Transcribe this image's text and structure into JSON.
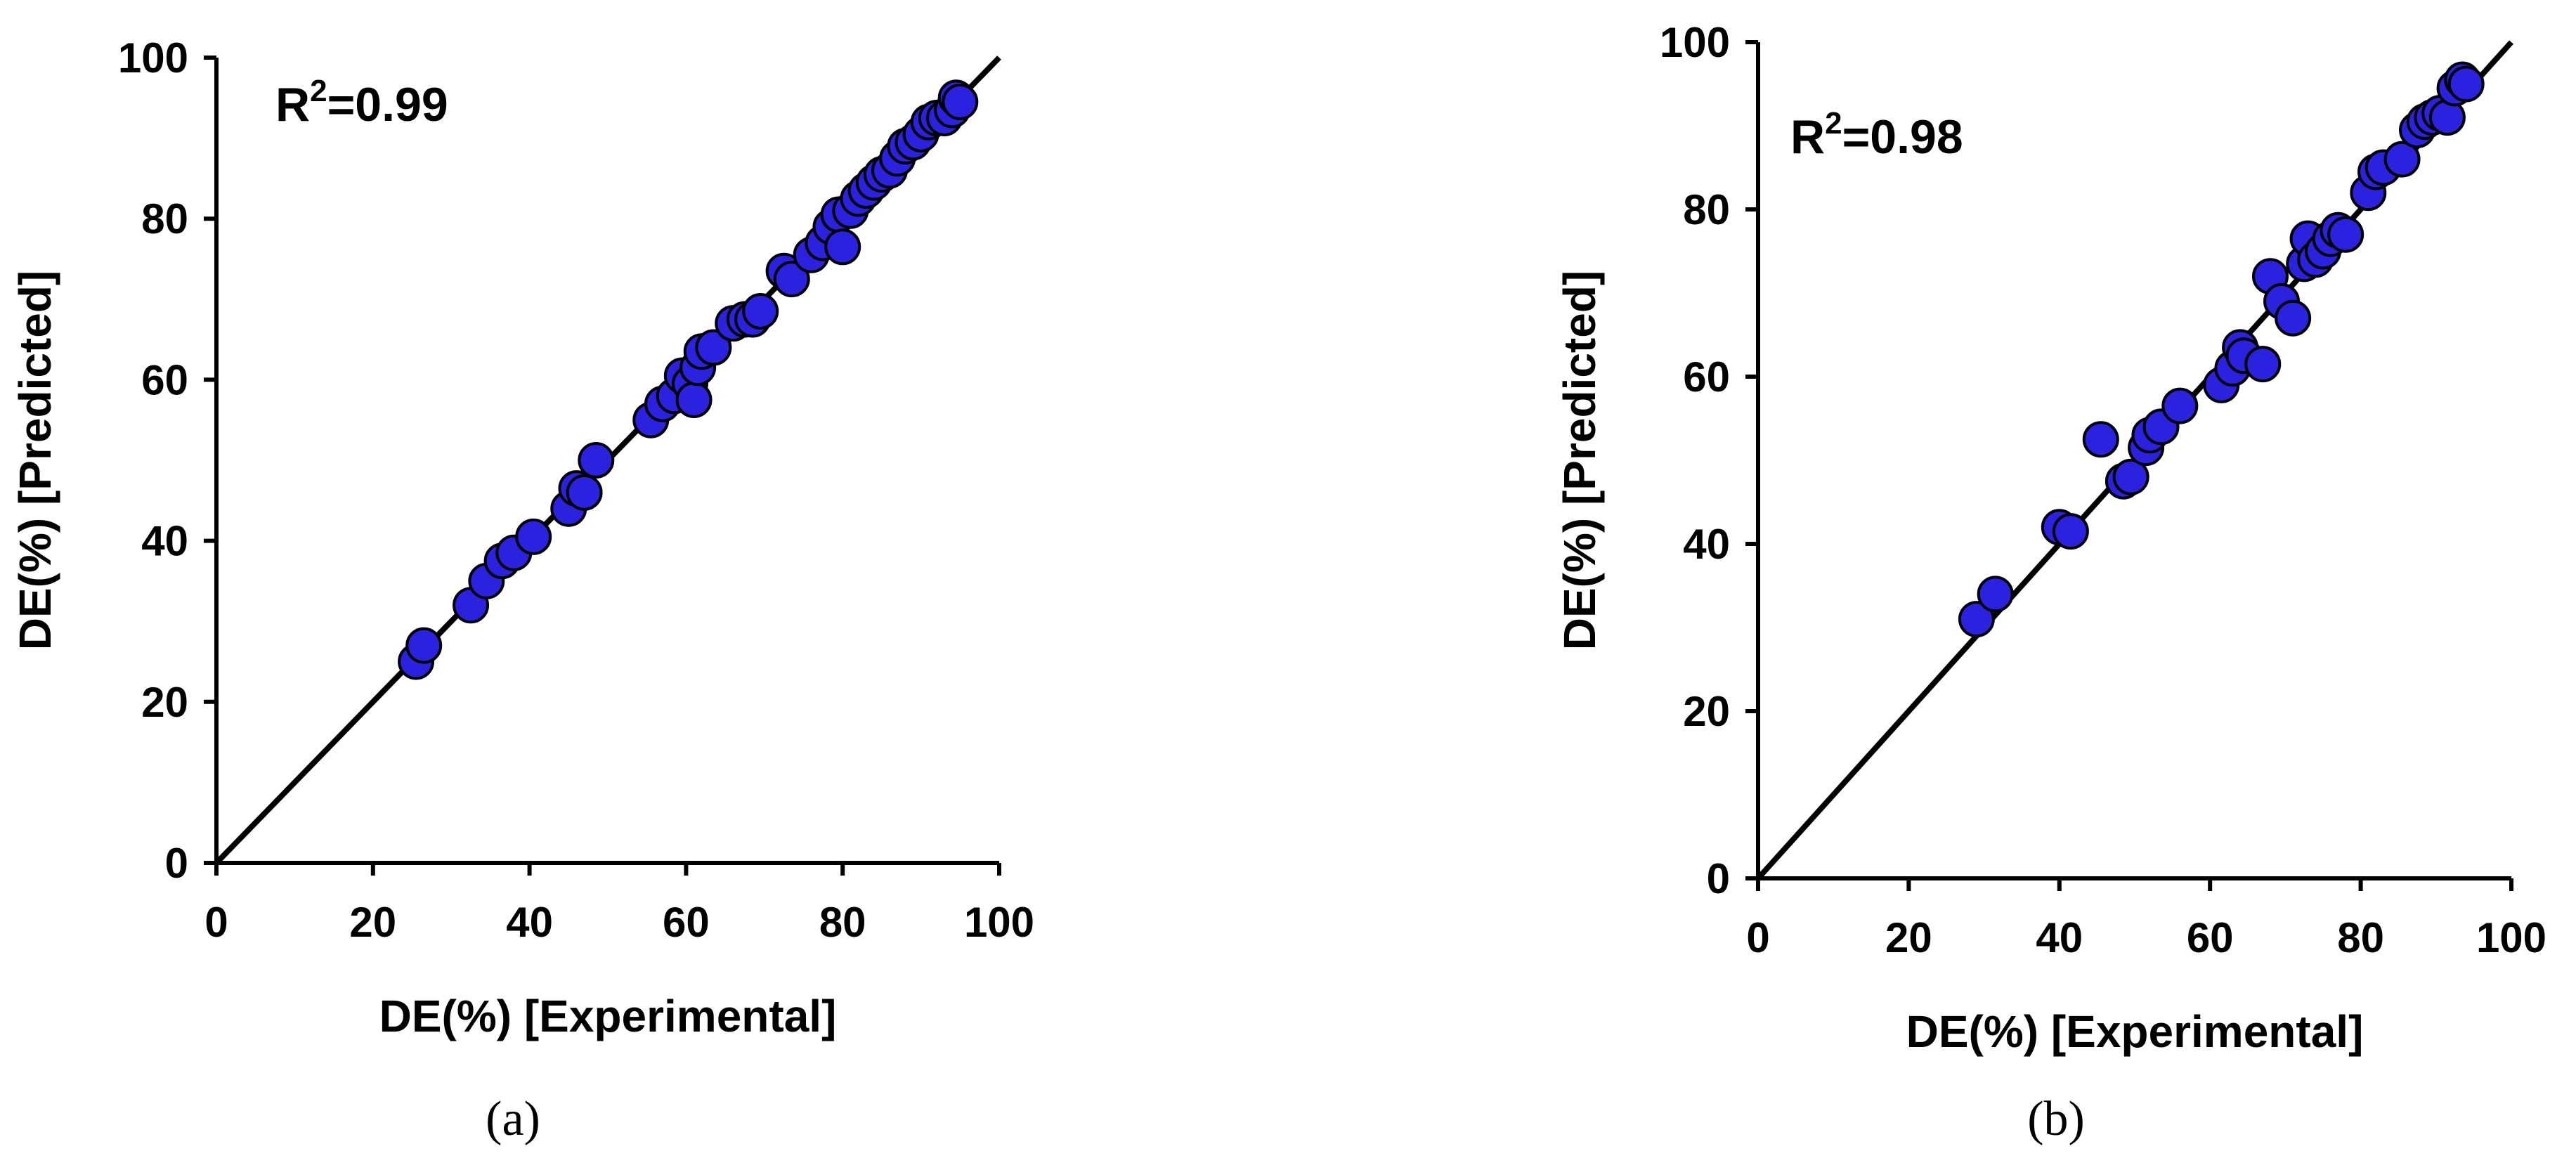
{
  "colors": {
    "marker_fill": "#2b22e0",
    "marker_edge": "#000000",
    "line": "#000000"
  },
  "chart_data": [
    {
      "type": "scatter",
      "panel_label": "(a)",
      "xlabel": "DE(%) [Experimental]",
      "ylabel": "DE(%) [Predicted]",
      "xlim": [
        0,
        100
      ],
      "ylim": [
        0,
        100
      ],
      "xticks": [
        "0",
        "20",
        "40",
        "60",
        "80",
        "100"
      ],
      "yticks": [
        "0",
        "20",
        "40",
        "60",
        "80",
        "100"
      ],
      "annotation": {
        "base": "R",
        "sup": "2",
        "value": "=0.99"
      },
      "reference_line": [
        [
          0,
          0
        ],
        [
          100,
          100
        ]
      ],
      "grid": false,
      "points": [
        [
          25.5,
          25
        ],
        [
          26.5,
          27
        ],
        [
          32.5,
          32
        ],
        [
          34.5,
          35
        ],
        [
          36.5,
          37.5
        ],
        [
          38,
          38.5
        ],
        [
          40.5,
          40.5
        ],
        [
          45,
          44
        ],
        [
          46,
          46.5
        ],
        [
          47,
          46
        ],
        [
          48.5,
          50
        ],
        [
          55.5,
          55
        ],
        [
          57,
          57
        ],
        [
          58.5,
          58
        ],
        [
          59.5,
          60.5
        ],
        [
          60.5,
          59.5
        ],
        [
          61,
          57.5
        ],
        [
          61.5,
          61.5
        ],
        [
          62,
          63.5
        ],
        [
          63.5,
          64
        ],
        [
          66,
          67
        ],
        [
          67.5,
          67.5
        ],
        [
          68.5,
          67.5
        ],
        [
          69.5,
          68.5
        ],
        [
          72.5,
          73.5
        ],
        [
          73.5,
          72.5
        ],
        [
          76,
          75.5
        ],
        [
          77.5,
          77
        ],
        [
          78.5,
          79
        ],
        [
          79.5,
          80.5
        ],
        [
          80,
          76.5
        ],
        [
          81,
          81
        ],
        [
          82,
          82.5
        ],
        [
          83,
          83.5
        ],
        [
          84,
          84.5
        ],
        [
          85,
          85.5
        ],
        [
          86,
          86
        ],
        [
          87,
          87.5
        ],
        [
          88,
          89
        ],
        [
          89,
          89.5
        ],
        [
          90,
          90.5
        ],
        [
          91,
          92
        ],
        [
          92,
          92.5
        ],
        [
          93,
          92.5
        ],
        [
          94,
          93.5
        ],
        [
          94.5,
          95
        ],
        [
          95,
          94.5
        ]
      ]
    },
    {
      "type": "scatter",
      "panel_label": "(b)",
      "xlabel": "DE(%) [Experimental]",
      "ylabel": "DE(%) [Predicted]",
      "xlim": [
        0,
        100
      ],
      "ylim": [
        0,
        100
      ],
      "xticks": [
        "0",
        "20",
        "40",
        "60",
        "80",
        "100"
      ],
      "yticks": [
        "0",
        "20",
        "40",
        "60",
        "80",
        "100"
      ],
      "annotation": {
        "base": "R",
        "sup": "2",
        "value": "=0.98"
      },
      "reference_line": [
        [
          0,
          0
        ],
        [
          100,
          100
        ]
      ],
      "grid": false,
      "points": [
        [
          29,
          31
        ],
        [
          31.5,
          34
        ],
        [
          40,
          42
        ],
        [
          41.5,
          41.5
        ],
        [
          45.5,
          52.5
        ],
        [
          48.5,
          47.5
        ],
        [
          49.5,
          48
        ],
        [
          51.5,
          51.5
        ],
        [
          52,
          53
        ],
        [
          53.5,
          54
        ],
        [
          56,
          56.5
        ],
        [
          61.5,
          59
        ],
        [
          63,
          61
        ],
        [
          64,
          63.5
        ],
        [
          64.5,
          62.5
        ],
        [
          67,
          61.5
        ],
        [
          68,
          72
        ],
        [
          69.5,
          69
        ],
        [
          71,
          67
        ],
        [
          72.5,
          73.5
        ],
        [
          73,
          76.5
        ],
        [
          74,
          74
        ],
        [
          75,
          75
        ],
        [
          76,
          76.5
        ],
        [
          77,
          77.5
        ],
        [
          78,
          77
        ],
        [
          81,
          82
        ],
        [
          82,
          84.5
        ],
        [
          83,
          85
        ],
        [
          85.5,
          86
        ],
        [
          87.5,
          89.5
        ],
        [
          88.5,
          90.5
        ],
        [
          89.5,
          91
        ],
        [
          90.5,
          91.5
        ],
        [
          91.5,
          91
        ],
        [
          92.5,
          94.5
        ],
        [
          93.5,
          95.5
        ],
        [
          94,
          95
        ]
      ]
    }
  ]
}
